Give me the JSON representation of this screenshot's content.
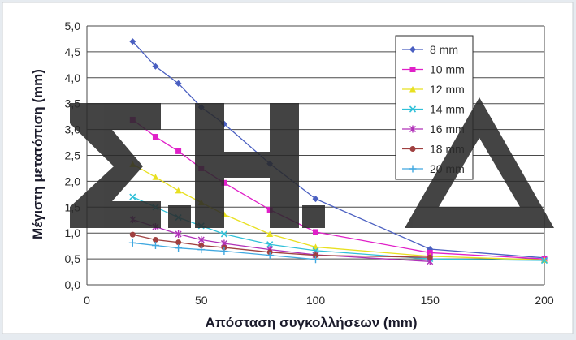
{
  "chart_data": {
    "type": "line",
    "title": "",
    "xlabel": "Απόσταση συγκολλήσεων (mm)",
    "ylabel": "Μέγιστη μετατόπιση (mm)",
    "xlim": [
      0,
      200
    ],
    "ylim": [
      0,
      5
    ],
    "x_ticks": [
      "0",
      "50",
      "100",
      "150",
      "200"
    ],
    "y_ticks": [
      "0,0",
      "0,5",
      "1,0",
      "1,5",
      "2,0",
      "2,5",
      "3,0",
      "3,5",
      "4,0",
      "4,5",
      "5,0"
    ],
    "grid": true,
    "legend_position": "top-right",
    "series": [
      {
        "name": "8 mm",
        "color": "#4a5fc1",
        "marker": "diamond",
        "points": [
          [
            20,
            4.7
          ],
          [
            30,
            4.22
          ],
          [
            40,
            3.89
          ],
          [
            50,
            3.43
          ],
          [
            60,
            3.11
          ],
          [
            80,
            2.34
          ],
          [
            100,
            1.66
          ],
          [
            150,
            0.69
          ],
          [
            200,
            0.52
          ]
        ]
      },
      {
        "name": "10 mm",
        "color": "#e020c8",
        "marker": "square",
        "points": [
          [
            20,
            3.19
          ],
          [
            30,
            2.86
          ],
          [
            40,
            2.58
          ],
          [
            50,
            2.25
          ],
          [
            60,
            1.97
          ],
          [
            80,
            1.45
          ],
          [
            100,
            1.02
          ],
          [
            150,
            0.62
          ],
          [
            200,
            0.5
          ]
        ]
      },
      {
        "name": "12 mm",
        "color": "#e8e020",
        "marker": "triangle",
        "points": [
          [
            20,
            2.33
          ],
          [
            30,
            2.08
          ],
          [
            40,
            1.82
          ],
          [
            50,
            1.59
          ],
          [
            60,
            1.36
          ],
          [
            80,
            0.98
          ],
          [
            100,
            0.73
          ],
          [
            150,
            0.55
          ],
          [
            200,
            0.48
          ]
        ]
      },
      {
        "name": "14 mm",
        "color": "#30c0d8",
        "marker": "x",
        "points": [
          [
            20,
            1.7
          ],
          [
            30,
            1.5
          ],
          [
            40,
            1.3
          ],
          [
            50,
            1.14
          ],
          [
            60,
            0.98
          ],
          [
            80,
            0.78
          ],
          [
            100,
            0.66
          ],
          [
            150,
            0.5
          ],
          [
            200,
            0.47
          ]
        ]
      },
      {
        "name": "16 mm",
        "color": "#b030b8",
        "marker": "star",
        "points": [
          [
            20,
            1.26
          ],
          [
            30,
            1.12
          ],
          [
            40,
            0.98
          ],
          [
            50,
            0.87
          ],
          [
            60,
            0.8
          ],
          [
            80,
            0.68
          ],
          [
            100,
            0.58
          ],
          [
            150,
            0.45
          ]
        ]
      },
      {
        "name": "18 mm",
        "color": "#a04040",
        "marker": "circle",
        "points": [
          [
            20,
            0.97
          ],
          [
            30,
            0.87
          ],
          [
            40,
            0.82
          ],
          [
            50,
            0.76
          ],
          [
            60,
            0.72
          ],
          [
            80,
            0.63
          ],
          [
            100,
            0.57
          ],
          [
            150,
            0.53
          ]
        ]
      },
      {
        "name": "20 mm",
        "color": "#40a8e0",
        "marker": "plus",
        "points": [
          [
            20,
            0.81
          ],
          [
            30,
            0.76
          ],
          [
            40,
            0.71
          ],
          [
            50,
            0.68
          ],
          [
            60,
            0.65
          ],
          [
            80,
            0.57
          ],
          [
            100,
            0.49
          ]
        ]
      }
    ]
  },
  "watermark": {
    "text": "Σ.Η.Δ",
    "color": "#2a2a2a"
  }
}
